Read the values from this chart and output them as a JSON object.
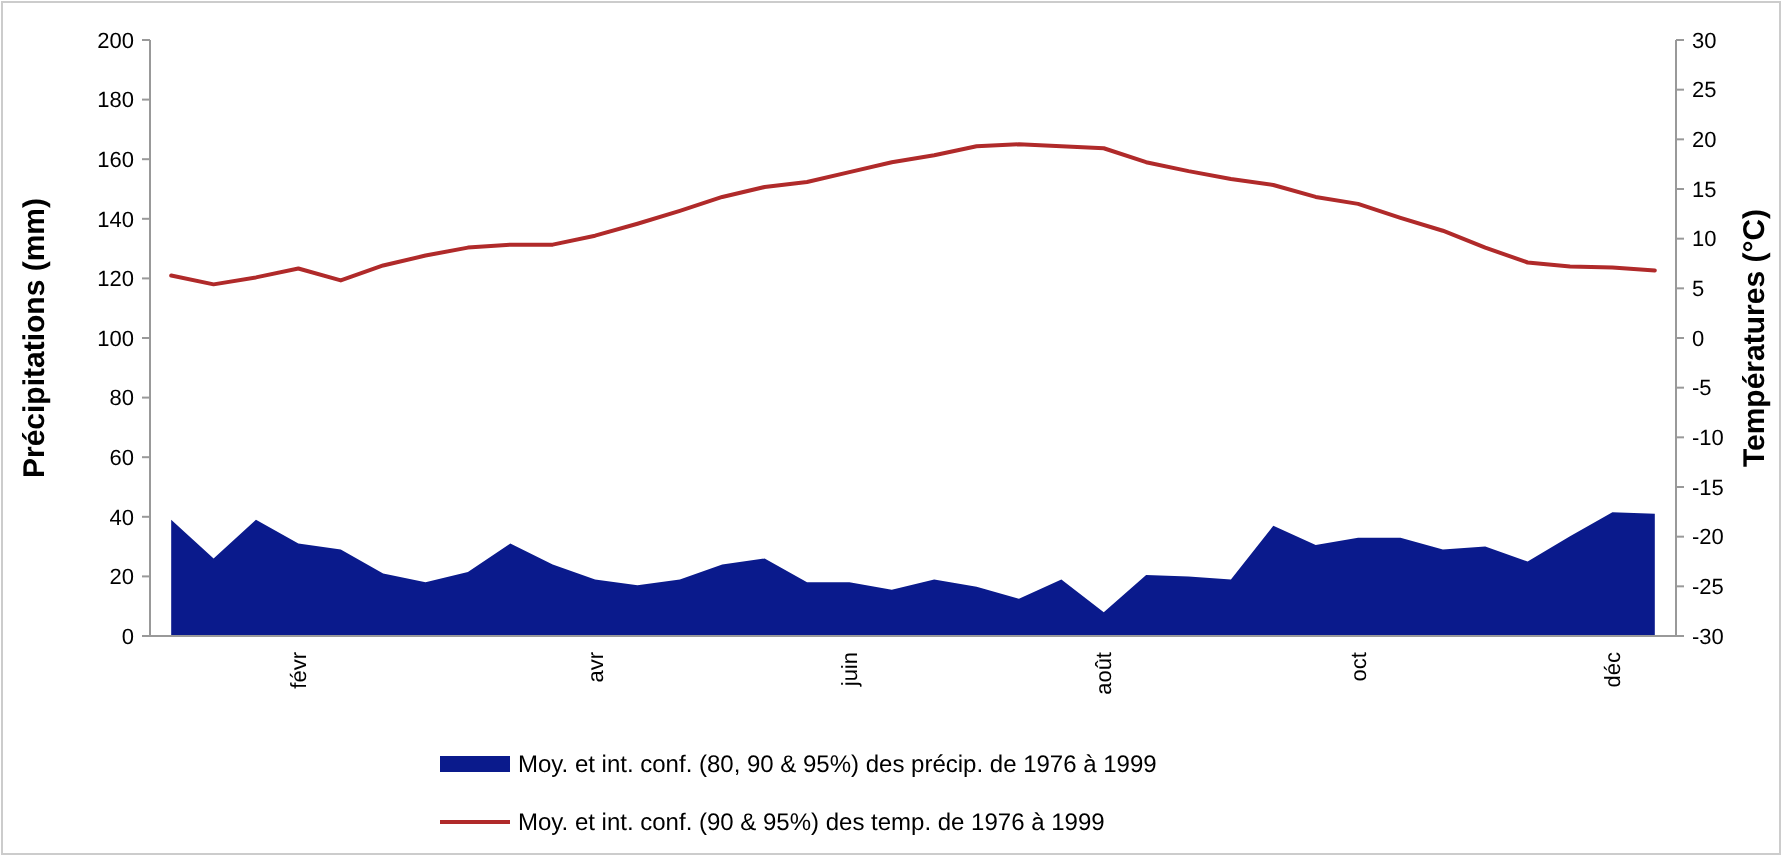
{
  "chart_data": {
    "type": "area",
    "ylabel": "Précipitations (mm)",
    "y2label": "Températures (°C)",
    "categories": [
      null,
      null,
      null,
      "févr",
      null,
      null,
      null,
      null,
      null,
      null,
      "avr",
      null,
      null,
      null,
      null,
      null,
      "juin",
      null,
      null,
      null,
      null,
      null,
      "août",
      null,
      null,
      null,
      null,
      null,
      "oct",
      null,
      null,
      null,
      null,
      null,
      "déc",
      null
    ],
    "series": [
      {
        "name": "Moy. et int. conf. (80, 90 & 95%) des précip. de 1976 à 1999",
        "color": "#0a1a8c",
        "values": [
          39,
          26,
          39,
          31,
          29,
          21,
          18,
          21.5,
          31,
          24,
          19,
          17,
          19,
          24,
          26,
          18,
          18,
          15.5,
          19,
          16.5,
          12.5,
          19,
          8,
          20.5,
          20,
          19,
          37,
          30.5,
          33,
          33,
          29,
          30,
          25,
          33.5,
          41.5,
          41
        ]
      },
      {
        "name": "Moy. et int. conf. (90 & 95%) des temp. de 1976 à 1999",
        "type": "line",
        "axis": "y2",
        "color": "#b02a2a",
        "values": [
          6.3,
          5.4,
          6.1,
          7,
          5.8,
          7.3,
          8.3,
          9.1,
          9.4,
          9.4,
          10.3,
          11.5,
          12.8,
          14.2,
          15.2,
          15.7,
          16.7,
          17.7,
          18.4,
          19.3,
          19.5,
          19.3,
          19.1,
          17.7,
          16.8,
          16,
          15.4,
          14.2,
          13.5,
          12.1,
          10.8,
          9.1,
          7.6,
          7.2,
          7.1,
          6.8
        ]
      }
    ],
    "ylim": [
      0,
      200
    ],
    "yticks": [
      0,
      20,
      40,
      60,
      80,
      100,
      120,
      140,
      160,
      180,
      200
    ],
    "y2lim": [
      -30,
      30
    ],
    "y2ticks": [
      -30,
      -25,
      -20,
      -15,
      -10,
      -5,
      0,
      5,
      10,
      15,
      20,
      25,
      30
    ],
    "legend": "bottom",
    "line_style": "solid",
    "marker": "none"
  }
}
